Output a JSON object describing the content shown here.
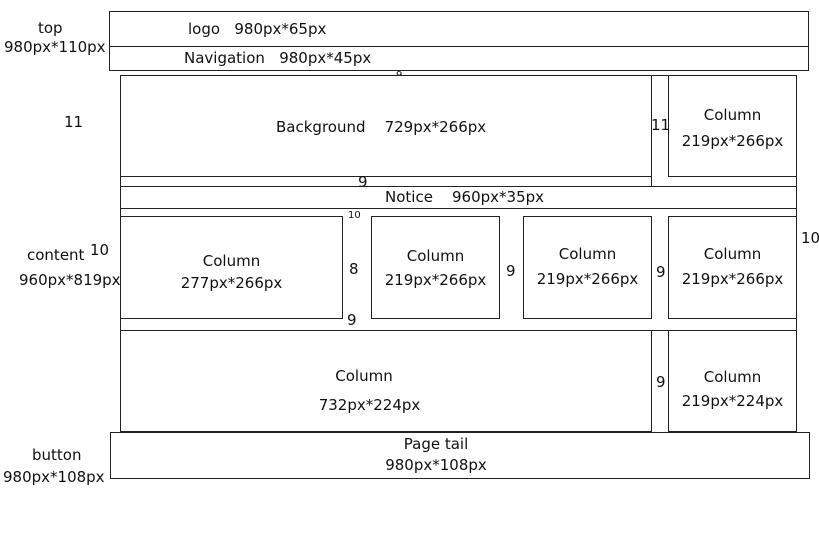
{
  "left_labels": {
    "top_name": "top",
    "top_size": "980px*110px",
    "eleven": "11",
    "content_name": "content",
    "content_num": "10",
    "content_size": "960px*819px",
    "button_name": "button",
    "button_size": "980px*108px"
  },
  "header": {
    "logo_name": "logo",
    "logo_size": "980px*65px",
    "nav_name": "Navigation",
    "nav_size": "980px*45px"
  },
  "gaps": {
    "nav_content": "9",
    "bg_column": "11",
    "bg_notice": "9",
    "notice_row": "10",
    "col1_col2": "8",
    "col1_below": "9",
    "col2_col3": "9",
    "col3_col4": "9",
    "bottom_cols": "9",
    "right_edge": "10"
  },
  "background": {
    "name": "Background",
    "size": "729px*266px"
  },
  "notice": {
    "name": "Notice",
    "size": "960px*35px"
  },
  "columns": {
    "top_right": {
      "name": "Column",
      "size": "219px*266px"
    },
    "row_1": {
      "name": "Column",
      "size": "277px*266px"
    },
    "row_2": {
      "name": "Column",
      "size": "219px*266px"
    },
    "row_3": {
      "name": "Column",
      "size": "219px*266px"
    },
    "row_4": {
      "name": "Column",
      "size": "219px*266px"
    },
    "bottom_left": {
      "name": "Column",
      "size": "732px*224px"
    },
    "bottom_right": {
      "name": "Column",
      "size": "219px*224px"
    }
  },
  "footer": {
    "name": "Page tail",
    "size": "980px*108px"
  }
}
